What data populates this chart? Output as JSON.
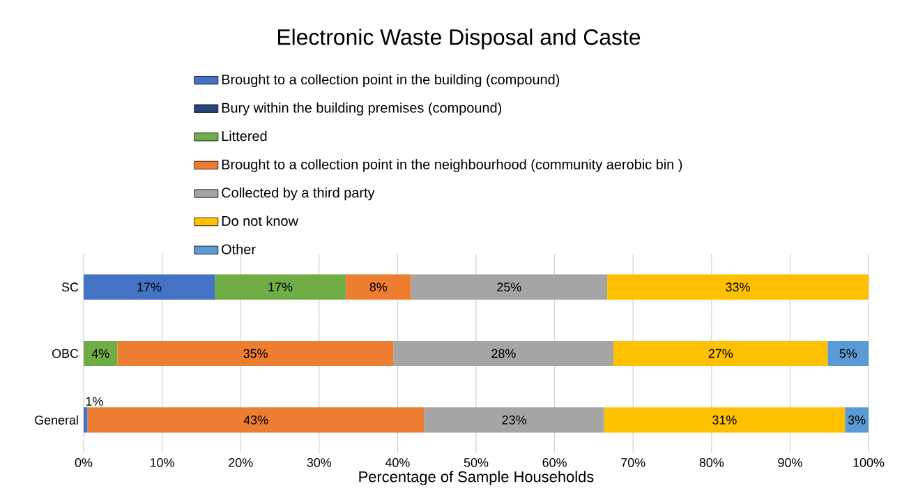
{
  "chart_data": {
    "type": "bar",
    "orientation": "horizontal",
    "stacked": true,
    "title": "Electronic Waste Disposal and Caste",
    "xlabel": "Percentage of Sample Households",
    "categories": [
      "SC",
      "OBC",
      "General"
    ],
    "series": [
      {
        "name": "Brought to a collection point in the building (compound)",
        "color": "#4472c4",
        "values": [
          16.7,
          null,
          0.5
        ],
        "value_labels": [
          "17%",
          null,
          "1%"
        ]
      },
      {
        "name": "Bury within the building premises (compound)",
        "color": "#264478",
        "values": [
          null,
          null,
          null
        ],
        "value_labels": [
          null,
          null,
          null
        ]
      },
      {
        "name": "Littered",
        "color": "#70ad47",
        "values": [
          16.7,
          4.3,
          null
        ],
        "value_labels": [
          "17%",
          "4%",
          null
        ]
      },
      {
        "name": "Brought to a collection point in the neighbourhood (community aerobic bin )",
        "color": "#ed7d31",
        "values": [
          8.3,
          35.2,
          42.9
        ],
        "value_labels": [
          "8%",
          "35%",
          "43%"
        ]
      },
      {
        "name": "Collected by a third party",
        "color": "#a5a5a5",
        "values": [
          25.0,
          28.0,
          22.9
        ],
        "value_labels": [
          "25%",
          "28%",
          "23%"
        ]
      },
      {
        "name": "Do not know",
        "color": "#ffc000",
        "values": [
          33.3,
          27.3,
          30.7
        ],
        "value_labels": [
          "33%",
          "27%",
          "31%"
        ]
      },
      {
        "name": "Other",
        "color": "#5b9bd5",
        "values": [
          null,
          5.2,
          3.0
        ],
        "value_labels": [
          null,
          "5%",
          "3%"
        ]
      }
    ],
    "xlim": [
      0,
      100
    ],
    "xticks": [
      {
        "value": 0,
        "label": "0%"
      },
      {
        "value": 10,
        "label": "10%"
      },
      {
        "value": 20,
        "label": "20%"
      },
      {
        "value": 30,
        "label": "30%"
      },
      {
        "value": 40,
        "label": "40%"
      },
      {
        "value": 50,
        "label": "50%"
      },
      {
        "value": 60,
        "label": "60%"
      },
      {
        "value": 70,
        "label": "70%"
      },
      {
        "value": 80,
        "label": "80%"
      },
      {
        "value": 90,
        "label": "90%"
      },
      {
        "value": 100,
        "label": "100%"
      }
    ],
    "grid": "x",
    "legend": "top"
  }
}
